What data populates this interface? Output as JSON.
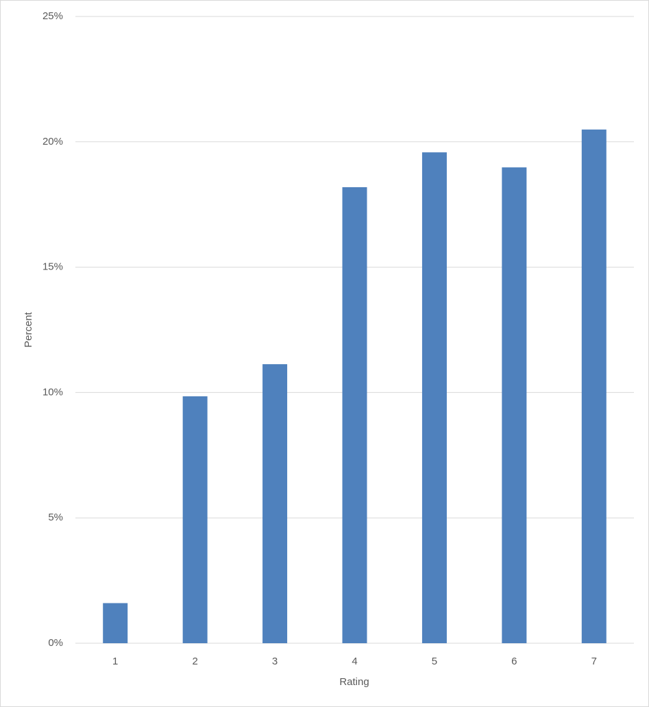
{
  "chart_data": {
    "type": "bar",
    "x_label": "Rating",
    "y_label": "Percent",
    "categories": [
      "1",
      "2",
      "3",
      "4",
      "5",
      "6",
      "7"
    ],
    "values": [
      1.6,
      9.85,
      11.13,
      18.19,
      19.58,
      18.98,
      20.49
    ],
    "color": "#4f81bd",
    "ylim": [
      0,
      25
    ],
    "yticks": [
      {
        "value": 0,
        "label": "0%"
      },
      {
        "value": 5,
        "label": "5%"
      },
      {
        "value": 10,
        "label": "10%"
      },
      {
        "value": 15,
        "label": "15%"
      },
      {
        "value": 20,
        "label": "20%"
      },
      {
        "value": 25,
        "label": "25%"
      }
    ],
    "grid": true
  }
}
